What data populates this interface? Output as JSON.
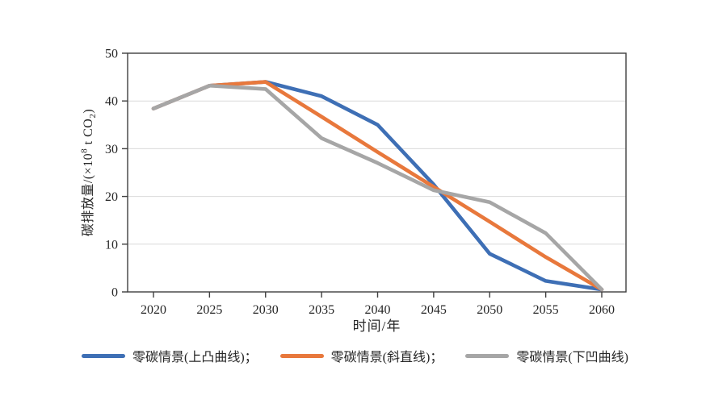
{
  "chart_data": {
    "type": "line",
    "title": "",
    "x": [
      2020,
      2025,
      2030,
      2035,
      2040,
      2045,
      2050,
      2055,
      2060
    ],
    "x_tick_labels": [
      "2020",
      "2025",
      "2030",
      "2035",
      "2040",
      "2045",
      "2050",
      "2055",
      "2060"
    ],
    "y_tick_labels": [
      "0",
      "10",
      "20",
      "30",
      "40",
      "50"
    ],
    "ylim": [
      0,
      50
    ],
    "ytick_step": 10,
    "grid": "horizontal",
    "legend_position": "bottom",
    "xlabel": "时间/年",
    "ylabel": "碳排放量/(×10⁸ t CO₂)",
    "ylabel_parts": {
      "pre": "碳排放量/(×10",
      "sup": "8",
      "mid": " t CO",
      "sub": "2",
      "post": ")"
    },
    "series": [
      {
        "name": "零碳情景(上凸曲线)",
        "color": "#3E6FB5",
        "values": [
          38.4,
          43.2,
          44.0,
          41.0,
          35.0,
          22.5,
          8.0,
          2.3,
          0.5
        ]
      },
      {
        "name": "零碳情景(斜直线)",
        "color": "#E8783C",
        "values": [
          38.4,
          43.2,
          44.0,
          36.7,
          29.3,
          22.0,
          14.7,
          7.3,
          0.5
        ]
      },
      {
        "name": "零碳情景(下凹曲线)",
        "color": "#A6A6A6",
        "values": [
          38.4,
          43.2,
          42.5,
          32.2,
          27.0,
          21.3,
          18.8,
          12.3,
          0.5
        ]
      }
    ],
    "legend_labels": [
      "零碳情景(上凸曲线)；",
      "零碳情景(斜直线)；",
      "零碳情景(下凹曲线)"
    ]
  },
  "style": {
    "axis_color": "#3f3f3f",
    "grid_color": "#d9d9d9",
    "background": "#ffffff"
  }
}
